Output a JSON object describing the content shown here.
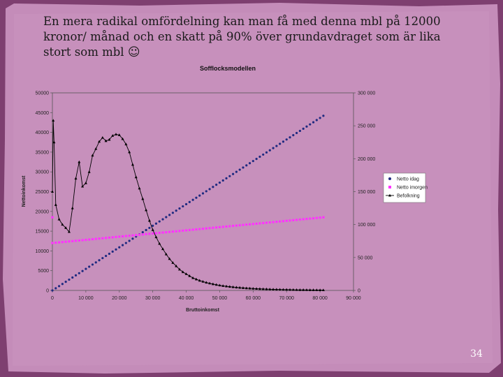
{
  "slide": {
    "text": "En mera radikal omfördelning kan man få med denna mbl på 12000 kronor/ månad och en skatt på 90% över grundavdraget som är lika stort som mbl",
    "smiley": "☺",
    "page_number": "34"
  },
  "colors": {
    "background": "#8a4b7c",
    "slide_panel": "#c890bd",
    "netto_idag": "#1f2a80",
    "netto_imorgen": "#ff33ff",
    "befolkning": "#000000"
  },
  "chart_data": {
    "type": "line",
    "title": "Sofflocksmodellen",
    "xlabel": "Bruttoinkomst",
    "ylabel": "Nettoinkomst",
    "xlim": [
      0,
      90000
    ],
    "ylim": [
      0,
      50000
    ],
    "y2lim": [
      0,
      300000
    ],
    "x_ticks": [
      "0",
      "10 000",
      "20 000",
      "30 000",
      "40 000",
      "50 000",
      "60 000",
      "70 000",
      "80 000",
      "90 000"
    ],
    "y_ticks": [
      "0",
      "5000",
      "10000",
      "15000",
      "20000",
      "25000",
      "30000",
      "35000",
      "40000",
      "45000",
      "50000"
    ],
    "y2_ticks": [
      "0",
      "50 000",
      "100 000",
      "150 000",
      "200 000",
      "250 000",
      "300 000"
    ],
    "grid": false,
    "legend_position": "right",
    "series": [
      {
        "name": "Netto idag",
        "axis": "left",
        "marker": "circle",
        "x_start": 0,
        "x_end": 81000,
        "x_step": 1000,
        "y_start": 0,
        "y_end": 44200
      },
      {
        "name": "Netto imorgen",
        "axis": "left",
        "marker": "square",
        "x_start": 0,
        "x_end": 81000,
        "x_step": 1000,
        "y_start": 12000,
        "y_end": 18500,
        "extra_points": [
          [
            0,
            18500
          ]
        ]
      },
      {
        "name": "Befolkning",
        "axis": "right",
        "marker": "triangle",
        "points": [
          [
            0,
            150000
          ],
          [
            250,
            258000
          ],
          [
            500,
            225000
          ],
          [
            1000,
            130000
          ],
          [
            2000,
            108000
          ],
          [
            3000,
            100000
          ],
          [
            4000,
            95000
          ],
          [
            5000,
            89000
          ],
          [
            6000,
            125000
          ],
          [
            7000,
            170000
          ],
          [
            8000,
            195000
          ],
          [
            9000,
            158000
          ],
          [
            10000,
            163000
          ],
          [
            11000,
            180000
          ],
          [
            12000,
            205000
          ],
          [
            13000,
            215000
          ],
          [
            14000,
            226000
          ],
          [
            15000,
            232000
          ],
          [
            16000,
            227000
          ],
          [
            17000,
            229000
          ],
          [
            18000,
            235000
          ],
          [
            19000,
            237000
          ],
          [
            20000,
            236000
          ],
          [
            21000,
            230000
          ],
          [
            22000,
            222000
          ],
          [
            23000,
            210000
          ],
          [
            24000,
            191000
          ],
          [
            25000,
            172000
          ],
          [
            26000,
            155000
          ],
          [
            27000,
            139000
          ],
          [
            28000,
            122000
          ],
          [
            29000,
            106000
          ],
          [
            30000,
            92000
          ],
          [
            31000,
            81000
          ],
          [
            32000,
            71000
          ],
          [
            33000,
            63000
          ],
          [
            34000,
            55000
          ],
          [
            35000,
            48000
          ],
          [
            36000,
            42000
          ],
          [
            37000,
            37000
          ],
          [
            38000,
            32000
          ],
          [
            39000,
            28000
          ],
          [
            40000,
            25000
          ],
          [
            41000,
            22000
          ],
          [
            42000,
            19000
          ],
          [
            43000,
            17000
          ],
          [
            44000,
            15000
          ],
          [
            45000,
            13500
          ],
          [
            46000,
            12000
          ],
          [
            47000,
            10800
          ],
          [
            48000,
            9700
          ],
          [
            49000,
            8700
          ],
          [
            50000,
            7800
          ],
          [
            51000,
            7000
          ],
          [
            52000,
            6300
          ],
          [
            53000,
            5700
          ],
          [
            54000,
            5200
          ],
          [
            55000,
            4700
          ],
          [
            56000,
            4300
          ],
          [
            57000,
            3900
          ],
          [
            58000,
            3500
          ],
          [
            59000,
            3200
          ],
          [
            60000,
            2900
          ],
          [
            61000,
            2600
          ],
          [
            62000,
            2400
          ],
          [
            63000,
            2200
          ],
          [
            64000,
            2000
          ],
          [
            65000,
            1800
          ],
          [
            66000,
            1600
          ],
          [
            67000,
            1500
          ],
          [
            68000,
            1400
          ],
          [
            69000,
            1300
          ],
          [
            70000,
            1200
          ],
          [
            71000,
            1100
          ],
          [
            72000,
            1000
          ],
          [
            73000,
            900
          ],
          [
            74000,
            850
          ],
          [
            75000,
            800
          ],
          [
            76000,
            750
          ],
          [
            77000,
            700
          ],
          [
            78000,
            650
          ],
          [
            79000,
            600
          ],
          [
            80000,
            550
          ],
          [
            81000,
            500
          ]
        ]
      }
    ]
  }
}
